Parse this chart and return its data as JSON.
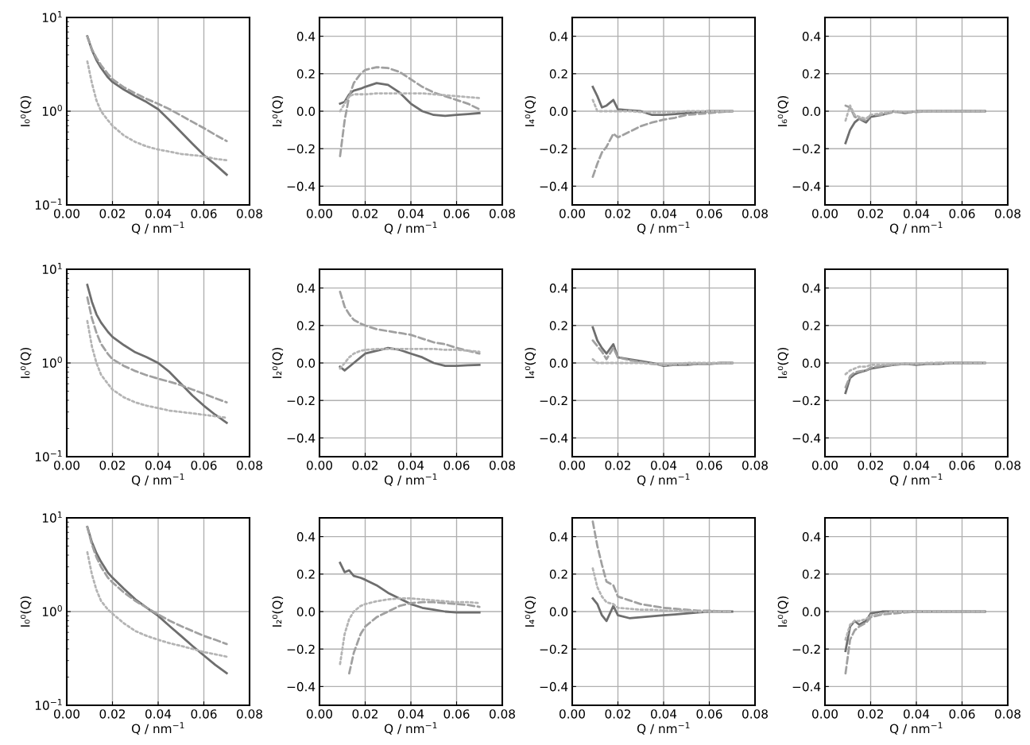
{
  "chart_data": [
    {
      "type": "line",
      "log": "y",
      "grid": true,
      "xlabel": "Q / nm$^{−1}$",
      "ylabel": "I₀⁰(Q)",
      "xlim": [
        0,
        0.08
      ],
      "xticks": [
        {
          "value": 0,
          "label": "0.00"
        },
        {
          "value": 0.02,
          "label": "0.02"
        },
        {
          "value": 0.04,
          "label": "0.04"
        },
        {
          "value": 0.06,
          "label": "0.06"
        },
        {
          "value": 0.08,
          "label": "0.08"
        }
      ],
      "ylim": [
        0.1,
        10
      ],
      "yticks": [
        {
          "value": 0.1,
          "label": "10$^{−1}$"
        },
        {
          "value": 1,
          "label": "10$^{0}$"
        },
        {
          "value": 10,
          "label": "10$^{1}$"
        }
      ],
      "x": [
        0.009,
        0.011,
        0.013,
        0.015,
        0.018,
        0.02,
        0.025,
        0.03,
        0.035,
        0.04,
        0.045,
        0.05,
        0.055,
        0.06,
        0.065,
        0.07
      ],
      "series": [
        {
          "color": "#6e6e6e",
          "line_style": "solid",
          "values": [
            6.3,
            4.5,
            3.5,
            2.9,
            2.3,
            2.05,
            1.7,
            1.45,
            1.25,
            1.05,
            0.8,
            0.6,
            0.45,
            0.34,
            0.27,
            0.21
          ]
        },
        {
          "color": "#a0a0a0",
          "line_style": "dashed",
          "values": [
            6.3,
            4.6,
            3.7,
            3.1,
            2.5,
            2.2,
            1.8,
            1.55,
            1.35,
            1.2,
            1.05,
            0.9,
            0.77,
            0.66,
            0.56,
            0.48
          ]
        },
        {
          "color": "#b4b4b4",
          "line_style": "dotted",
          "values": [
            3.4,
            2.0,
            1.3,
            1.0,
            0.8,
            0.7,
            0.55,
            0.47,
            0.42,
            0.39,
            0.37,
            0.35,
            0.34,
            0.33,
            0.31,
            0.3
          ]
        }
      ]
    },
    {
      "type": "line",
      "grid": true,
      "xlabel": "Q / nm$^{−1}$",
      "ylabel": "I₂⁰(Q)",
      "xlim": [
        0,
        0.08
      ],
      "xticks": [
        {
          "value": 0,
          "label": "0.00"
        },
        {
          "value": 0.02,
          "label": "0.02"
        },
        {
          "value": 0.04,
          "label": "0.04"
        },
        {
          "value": 0.06,
          "label": "0.06"
        },
        {
          "value": 0.08,
          "label": "0.08"
        }
      ],
      "ylim": [
        -0.5,
        0.5
      ],
      "yticks": [
        {
          "value": -0.4,
          "label": "−0.4"
        },
        {
          "value": -0.2,
          "label": "−0.2"
        },
        {
          "value": 0,
          "label": "0.0"
        },
        {
          "value": 0.2,
          "label": "0.2"
        },
        {
          "value": 0.4,
          "label": "0.4"
        }
      ],
      "x": [
        0.009,
        0.011,
        0.013,
        0.015,
        0.018,
        0.02,
        0.025,
        0.03,
        0.035,
        0.04,
        0.045,
        0.05,
        0.055,
        0.06,
        0.065,
        0.07
      ],
      "series": [
        {
          "color": "#6e6e6e",
          "line_style": "solid",
          "values": [
            0.04,
            0.05,
            0.09,
            0.11,
            0.12,
            0.13,
            0.15,
            0.14,
            0.1,
            0.04,
            0.0,
            -0.02,
            -0.025,
            -0.02,
            -0.015,
            -0.01
          ]
        },
        {
          "color": "#a0a0a0",
          "line_style": "dashed",
          "values": [
            -0.24,
            -0.05,
            0.08,
            0.15,
            0.2,
            0.22,
            0.235,
            0.23,
            0.21,
            0.17,
            0.13,
            0.1,
            0.08,
            0.06,
            0.04,
            0.01
          ]
        },
        {
          "color": "#b4b4b4",
          "line_style": "dotted",
          "values": [
            0.0,
            0.04,
            0.08,
            0.09,
            0.09,
            0.09,
            0.095,
            0.095,
            0.095,
            0.095,
            0.095,
            0.09,
            0.085,
            0.08,
            0.075,
            0.07
          ]
        }
      ]
    },
    {
      "type": "line",
      "grid": true,
      "xlabel": "Q / nm$^{−1}$",
      "ylabel": "I₄⁰(Q)",
      "xlim": [
        0,
        0.08
      ],
      "xticks": [
        {
          "value": 0,
          "label": "0.00"
        },
        {
          "value": 0.02,
          "label": "0.02"
        },
        {
          "value": 0.04,
          "label": "0.04"
        },
        {
          "value": 0.06,
          "label": "0.06"
        },
        {
          "value": 0.08,
          "label": "0.08"
        }
      ],
      "ylim": [
        -0.5,
        0.5
      ],
      "yticks": [
        {
          "value": -0.4,
          "label": "−0.4"
        },
        {
          "value": -0.2,
          "label": "−0.2"
        },
        {
          "value": 0,
          "label": "0.0"
        },
        {
          "value": 0.2,
          "label": "0.2"
        },
        {
          "value": 0.4,
          "label": "0.4"
        }
      ],
      "x": [
        0.009,
        0.011,
        0.013,
        0.015,
        0.018,
        0.02,
        0.025,
        0.03,
        0.035,
        0.04,
        0.045,
        0.05,
        0.055,
        0.06,
        0.065,
        0.07
      ],
      "series": [
        {
          "color": "#6e6e6e",
          "line_style": "solid",
          "values": [
            0.13,
            0.08,
            0.02,
            0.03,
            0.06,
            0.01,
            0.005,
            0.0,
            -0.02,
            -0.02,
            -0.015,
            -0.01,
            -0.005,
            0.0,
            0.0,
            0.0
          ]
        },
        {
          "color": "#a0a0a0",
          "line_style": "dashed",
          "values": [
            -0.35,
            -0.28,
            -0.22,
            -0.19,
            -0.12,
            -0.14,
            -0.11,
            -0.08,
            -0.06,
            -0.045,
            -0.035,
            -0.02,
            -0.015,
            -0.01,
            -0.005,
            0.0
          ]
        },
        {
          "color": "#b4b4b4",
          "line_style": "dotted",
          "values": [
            0.06,
            0.0,
            0.0,
            0.0,
            0.0,
            0.0,
            0.0,
            -0.005,
            -0.005,
            -0.005,
            -0.005,
            0.0,
            0.0,
            0.0,
            0.0,
            0.0
          ]
        }
      ]
    },
    {
      "type": "line",
      "grid": true,
      "xlabel": "Q / nm$^{−1}$",
      "ylabel": "I₆⁰(Q)",
      "xlim": [
        0,
        0.08
      ],
      "xticks": [
        {
          "value": 0,
          "label": "0.00"
        },
        {
          "value": 0.02,
          "label": "0.02"
        },
        {
          "value": 0.04,
          "label": "0.04"
        },
        {
          "value": 0.06,
          "label": "0.06"
        },
        {
          "value": 0.08,
          "label": "0.08"
        }
      ],
      "ylim": [
        -0.5,
        0.5
      ],
      "yticks": [
        {
          "value": -0.4,
          "label": "−0.4"
        },
        {
          "value": -0.2,
          "label": "−0.2"
        },
        {
          "value": 0,
          "label": "0.0"
        },
        {
          "value": 0.2,
          "label": "0.2"
        },
        {
          "value": 0.4,
          "label": "0.4"
        }
      ],
      "x": [
        0.009,
        0.011,
        0.013,
        0.015,
        0.018,
        0.02,
        0.025,
        0.03,
        0.035,
        0.04,
        0.045,
        0.05,
        0.055,
        0.06,
        0.065,
        0.07
      ],
      "series": [
        {
          "color": "#6e6e6e",
          "line_style": "solid",
          "values": [
            -0.17,
            -0.1,
            -0.06,
            -0.04,
            -0.06,
            -0.03,
            -0.02,
            0.0,
            -0.01,
            0.0,
            0.0,
            0.0,
            0.0,
            0.0,
            0.0,
            0.0
          ]
        },
        {
          "color": "#a0a0a0",
          "line_style": "dashed",
          "values": [
            0.03,
            0.02,
            -0.03,
            -0.04,
            -0.05,
            -0.02,
            -0.02,
            -0.005,
            -0.005,
            -0.005,
            0.0,
            0.0,
            0.0,
            0.0,
            0.0,
            0.0
          ]
        },
        {
          "color": "#b4b4b4",
          "line_style": "dotted",
          "values": [
            -0.05,
            0.03,
            -0.02,
            -0.03,
            -0.04,
            -0.02,
            -0.01,
            0.0,
            -0.005,
            0.0,
            0.0,
            0.0,
            0.0,
            0.0,
            0.0,
            0.0
          ]
        }
      ]
    },
    {
      "type": "line",
      "log": "y",
      "grid": true,
      "xlabel": "Q / nm$^{−1}$",
      "ylabel": "I₀⁰(Q)",
      "xlim": [
        0,
        0.08
      ],
      "xticks": [
        {
          "value": 0,
          "label": "0.00"
        },
        {
          "value": 0.02,
          "label": "0.02"
        },
        {
          "value": 0.04,
          "label": "0.04"
        },
        {
          "value": 0.06,
          "label": "0.06"
        },
        {
          "value": 0.08,
          "label": "0.08"
        }
      ],
      "ylim": [
        0.1,
        10
      ],
      "yticks": [
        {
          "value": 0.1,
          "label": "10$^{−1}$"
        },
        {
          "value": 1,
          "label": "10$^{0}$"
        },
        {
          "value": 10,
          "label": "10$^{1}$"
        }
      ],
      "x": [
        0.009,
        0.011,
        0.013,
        0.015,
        0.018,
        0.02,
        0.025,
        0.03,
        0.035,
        0.04,
        0.045,
        0.05,
        0.055,
        0.06,
        0.065,
        0.07
      ],
      "series": [
        {
          "color": "#6e6e6e",
          "line_style": "solid",
          "values": [
            6.8,
            4.5,
            3.3,
            2.7,
            2.15,
            1.9,
            1.55,
            1.3,
            1.15,
            1.0,
            0.8,
            0.6,
            0.45,
            0.35,
            0.28,
            0.23
          ]
        },
        {
          "color": "#a0a0a0",
          "line_style": "dashed",
          "values": [
            5.0,
            3.0,
            2.1,
            1.6,
            1.25,
            1.1,
            0.93,
            0.82,
            0.74,
            0.68,
            0.63,
            0.58,
            0.52,
            0.47,
            0.42,
            0.38
          ]
        },
        {
          "color": "#b4b4b4",
          "line_style": "dotted",
          "values": [
            2.8,
            1.5,
            1.0,
            0.75,
            0.6,
            0.52,
            0.43,
            0.38,
            0.35,
            0.33,
            0.31,
            0.3,
            0.29,
            0.28,
            0.27,
            0.26
          ]
        }
      ]
    },
    {
      "type": "line",
      "grid": true,
      "xlabel": "Q / nm$^{−1}$",
      "ylabel": "I₂⁰(Q)",
      "xlim": [
        0,
        0.08
      ],
      "xticks": [
        {
          "value": 0,
          "label": "0.00"
        },
        {
          "value": 0.02,
          "label": "0.02"
        },
        {
          "value": 0.04,
          "label": "0.04"
        },
        {
          "value": 0.06,
          "label": "0.06"
        },
        {
          "value": 0.08,
          "label": "0.08"
        }
      ],
      "ylim": [
        -0.5,
        0.5
      ],
      "yticks": [
        {
          "value": -0.4,
          "label": "−0.4"
        },
        {
          "value": -0.2,
          "label": "−0.2"
        },
        {
          "value": 0,
          "label": "0.0"
        },
        {
          "value": 0.2,
          "label": "0.2"
        },
        {
          "value": 0.4,
          "label": "0.4"
        }
      ],
      "x": [
        0.009,
        0.011,
        0.013,
        0.015,
        0.018,
        0.02,
        0.025,
        0.03,
        0.035,
        0.04,
        0.045,
        0.05,
        0.055,
        0.06,
        0.065,
        0.07
      ],
      "series": [
        {
          "color": "#6e6e6e",
          "line_style": "solid",
          "values": [
            -0.02,
            -0.04,
            -0.02,
            0.0,
            0.03,
            0.05,
            0.065,
            0.08,
            0.07,
            0.05,
            0.03,
            0.0,
            -0.015,
            -0.015,
            -0.012,
            -0.01
          ]
        },
        {
          "color": "#a0a0a0",
          "line_style": "dashed",
          "values": [
            0.38,
            0.3,
            0.26,
            0.23,
            0.21,
            0.2,
            0.18,
            0.17,
            0.16,
            0.15,
            0.13,
            0.11,
            0.1,
            0.08,
            0.065,
            0.05
          ]
        },
        {
          "color": "#b4b4b4",
          "line_style": "dotted",
          "values": [
            -0.03,
            0.0,
            0.03,
            0.05,
            0.065,
            0.07,
            0.075,
            0.075,
            0.075,
            0.075,
            0.075,
            0.075,
            0.07,
            0.07,
            0.065,
            0.06
          ]
        }
      ]
    },
    {
      "type": "line",
      "grid": true,
      "xlabel": "Q / nm$^{−1}$",
      "ylabel": "I₄⁰(Q)",
      "xlim": [
        0,
        0.08
      ],
      "xticks": [
        {
          "value": 0,
          "label": "0.00"
        },
        {
          "value": 0.02,
          "label": "0.02"
        },
        {
          "value": 0.04,
          "label": "0.04"
        },
        {
          "value": 0.06,
          "label": "0.06"
        },
        {
          "value": 0.08,
          "label": "0.08"
        }
      ],
      "ylim": [
        -0.5,
        0.5
      ],
      "yticks": [
        {
          "value": -0.4,
          "label": "−0.4"
        },
        {
          "value": -0.2,
          "label": "−0.2"
        },
        {
          "value": 0,
          "label": "0.0"
        },
        {
          "value": 0.2,
          "label": "0.2"
        },
        {
          "value": 0.4,
          "label": "0.4"
        }
      ],
      "x": [
        0.009,
        0.011,
        0.013,
        0.015,
        0.018,
        0.02,
        0.025,
        0.03,
        0.035,
        0.04,
        0.045,
        0.05,
        0.055,
        0.06,
        0.065,
        0.07
      ],
      "series": [
        {
          "color": "#6e6e6e",
          "line_style": "solid",
          "values": [
            0.19,
            0.12,
            0.08,
            0.05,
            0.1,
            0.03,
            0.02,
            0.01,
            0.0,
            -0.015,
            -0.01,
            -0.01,
            -0.005,
            -0.005,
            0.0,
            0.0
          ]
        },
        {
          "color": "#a0a0a0",
          "line_style": "dashed",
          "values": [
            0.12,
            0.09,
            0.06,
            0.02,
            0.08,
            0.03,
            0.015,
            0.005,
            -0.005,
            -0.01,
            -0.01,
            -0.01,
            -0.005,
            -0.005,
            0.0,
            0.0
          ]
        },
        {
          "color": "#b4b4b4",
          "line_style": "dotted",
          "values": [
            0.02,
            0.0,
            0.0,
            0.0,
            0.0,
            0.0,
            0.0,
            0.0,
            -0.005,
            -0.01,
            -0.005,
            0.0,
            0.0,
            0.0,
            0.0,
            0.0
          ]
        }
      ]
    },
    {
      "type": "line",
      "grid": true,
      "xlabel": "Q / nm$^{−1}$",
      "ylabel": "I₆⁰(Q)",
      "xlim": [
        0,
        0.08
      ],
      "xticks": [
        {
          "value": 0,
          "label": "0.00"
        },
        {
          "value": 0.02,
          "label": "0.02"
        },
        {
          "value": 0.04,
          "label": "0.04"
        },
        {
          "value": 0.06,
          "label": "0.06"
        },
        {
          "value": 0.08,
          "label": "0.08"
        }
      ],
      "ylim": [
        -0.5,
        0.5
      ],
      "yticks": [
        {
          "value": -0.4,
          "label": "−0.4"
        },
        {
          "value": -0.2,
          "label": "−0.2"
        },
        {
          "value": 0,
          "label": "0.0"
        },
        {
          "value": 0.2,
          "label": "0.2"
        },
        {
          "value": 0.4,
          "label": "0.4"
        }
      ],
      "x": [
        0.009,
        0.011,
        0.013,
        0.015,
        0.018,
        0.02,
        0.025,
        0.03,
        0.035,
        0.04,
        0.045,
        0.05,
        0.055,
        0.06,
        0.065,
        0.07
      ],
      "series": [
        {
          "color": "#6e6e6e",
          "line_style": "solid",
          "values": [
            -0.16,
            -0.08,
            -0.06,
            -0.05,
            -0.04,
            -0.03,
            -0.02,
            -0.01,
            -0.005,
            -0.01,
            -0.005,
            -0.005,
            0.0,
            0.0,
            0.0,
            0.0
          ]
        },
        {
          "color": "#a0a0a0",
          "line_style": "dashed",
          "values": [
            -0.13,
            -0.07,
            -0.05,
            -0.045,
            -0.04,
            -0.025,
            -0.015,
            -0.01,
            -0.005,
            -0.005,
            -0.005,
            0.0,
            0.0,
            0.0,
            0.0,
            0.0
          ]
        },
        {
          "color": "#b4b4b4",
          "line_style": "dotted",
          "values": [
            -0.06,
            -0.04,
            -0.03,
            -0.02,
            -0.02,
            -0.01,
            -0.01,
            -0.005,
            -0.005,
            -0.005,
            0.0,
            0.0,
            0.0,
            0.0,
            0.0,
            0.0
          ]
        }
      ]
    },
    {
      "type": "line",
      "log": "y",
      "grid": true,
      "xlabel": "Q / nm$^{−1}$",
      "ylabel": "I₀⁰(Q)",
      "xlim": [
        0,
        0.08
      ],
      "xticks": [
        {
          "value": 0,
          "label": "0.00"
        },
        {
          "value": 0.02,
          "label": "0.02"
        },
        {
          "value": 0.04,
          "label": "0.04"
        },
        {
          "value": 0.06,
          "label": "0.06"
        },
        {
          "value": 0.08,
          "label": "0.08"
        }
      ],
      "ylim": [
        0.1,
        10
      ],
      "yticks": [
        {
          "value": 0.1,
          "label": "10$^{−1}$"
        },
        {
          "value": 1,
          "label": "10$^{0}$"
        },
        {
          "value": 10,
          "label": "10$^{1}$"
        }
      ],
      "x": [
        0.009,
        0.011,
        0.013,
        0.015,
        0.018,
        0.02,
        0.025,
        0.03,
        0.035,
        0.04,
        0.045,
        0.05,
        0.055,
        0.06,
        0.065,
        0.07
      ],
      "series": [
        {
          "color": "#6e6e6e",
          "line_style": "solid",
          "values": [
            8.0,
            5.5,
            4.2,
            3.4,
            2.6,
            2.3,
            1.75,
            1.35,
            1.1,
            0.9,
            0.7,
            0.55,
            0.43,
            0.34,
            0.27,
            0.22
          ]
        },
        {
          "color": "#a0a0a0",
          "line_style": "dashed",
          "values": [
            8.0,
            5.2,
            3.8,
            3.0,
            2.3,
            2.05,
            1.6,
            1.3,
            1.1,
            0.93,
            0.8,
            0.7,
            0.62,
            0.55,
            0.5,
            0.45
          ]
        },
        {
          "color": "#b4b4b4",
          "line_style": "dotted",
          "values": [
            4.3,
            2.5,
            1.7,
            1.3,
            1.05,
            0.95,
            0.75,
            0.62,
            0.55,
            0.5,
            0.46,
            0.43,
            0.4,
            0.37,
            0.35,
            0.33
          ]
        }
      ]
    },
    {
      "type": "line",
      "grid": true,
      "xlabel": "Q / nm$^{−1}$",
      "ylabel": "I₂⁰(Q)",
      "xlim": [
        0,
        0.08
      ],
      "xticks": [
        {
          "value": 0,
          "label": "0.00"
        },
        {
          "value": 0.02,
          "label": "0.02"
        },
        {
          "value": 0.04,
          "label": "0.04"
        },
        {
          "value": 0.06,
          "label": "0.06"
        },
        {
          "value": 0.08,
          "label": "0.08"
        }
      ],
      "ylim": [
        -0.5,
        0.5
      ],
      "yticks": [
        {
          "value": -0.4,
          "label": "−0.4"
        },
        {
          "value": -0.2,
          "label": "−0.2"
        },
        {
          "value": 0,
          "label": "0.0"
        },
        {
          "value": 0.2,
          "label": "0.2"
        },
        {
          "value": 0.4,
          "label": "0.4"
        }
      ],
      "x": [
        0.009,
        0.011,
        0.013,
        0.015,
        0.018,
        0.02,
        0.025,
        0.03,
        0.035,
        0.04,
        0.045,
        0.05,
        0.055,
        0.06,
        0.065,
        0.07
      ],
      "series": [
        {
          "color": "#6e6e6e",
          "line_style": "solid",
          "values": [
            0.26,
            0.21,
            0.22,
            0.19,
            0.18,
            0.17,
            0.14,
            0.1,
            0.07,
            0.04,
            0.02,
            0.01,
            0.0,
            -0.005,
            -0.005,
            -0.005
          ]
        },
        {
          "color": "#a0a0a0",
          "line_style": "dashed",
          "values": [
            null,
            null,
            -0.33,
            -0.22,
            -0.12,
            -0.08,
            -0.03,
            0.0,
            0.03,
            0.045,
            0.05,
            0.05,
            0.045,
            0.04,
            0.035,
            0.025
          ]
        },
        {
          "color": "#b4b4b4",
          "line_style": "dotted",
          "values": [
            -0.28,
            -0.12,
            -0.04,
            0.0,
            0.03,
            0.04,
            0.055,
            0.065,
            0.07,
            0.07,
            0.065,
            0.06,
            0.055,
            0.05,
            0.05,
            0.045
          ]
        }
      ]
    },
    {
      "type": "line",
      "grid": true,
      "xlabel": "Q / nm$^{−1}$",
      "ylabel": "I₄⁰(Q)",
      "xlim": [
        0,
        0.08
      ],
      "xticks": [
        {
          "value": 0,
          "label": "0.00"
        },
        {
          "value": 0.02,
          "label": "0.02"
        },
        {
          "value": 0.04,
          "label": "0.04"
        },
        {
          "value": 0.06,
          "label": "0.06"
        },
        {
          "value": 0.08,
          "label": "0.08"
        }
      ],
      "ylim": [
        -0.5,
        0.5
      ],
      "yticks": [
        {
          "value": -0.4,
          "label": "−0.4"
        },
        {
          "value": -0.2,
          "label": "−0.2"
        },
        {
          "value": 0,
          "label": "0.0"
        },
        {
          "value": 0.2,
          "label": "0.2"
        },
        {
          "value": 0.4,
          "label": "0.4"
        }
      ],
      "x": [
        0.009,
        0.011,
        0.013,
        0.015,
        0.018,
        0.02,
        0.025,
        0.03,
        0.035,
        0.04,
        0.045,
        0.05,
        0.055,
        0.06,
        0.065,
        0.07
      ],
      "series": [
        {
          "color": "#6e6e6e",
          "line_style": "solid",
          "values": [
            0.07,
            0.04,
            -0.02,
            -0.05,
            0.03,
            -0.02,
            -0.035,
            -0.03,
            -0.025,
            -0.02,
            -0.015,
            -0.01,
            -0.005,
            0.0,
            0.0,
            0.0
          ]
        },
        {
          "color": "#a0a0a0",
          "line_style": "dashed",
          "values": [
            0.48,
            0.35,
            0.25,
            0.16,
            0.14,
            0.08,
            0.06,
            0.04,
            0.03,
            0.02,
            0.015,
            0.01,
            0.005,
            0.005,
            0.0,
            0.0
          ]
        },
        {
          "color": "#b4b4b4",
          "line_style": "dotted",
          "values": [
            0.23,
            0.13,
            0.08,
            0.05,
            0.04,
            0.02,
            0.015,
            0.01,
            0.01,
            0.005,
            0.005,
            0.005,
            0.0,
            0.0,
            0.0,
            0.0
          ]
        }
      ]
    },
    {
      "type": "line",
      "grid": true,
      "xlabel": "Q / nm$^{−1}$",
      "ylabel": "I₆⁰(Q)",
      "xlim": [
        0,
        0.08
      ],
      "xticks": [
        {
          "value": 0,
          "label": "0.00"
        },
        {
          "value": 0.02,
          "label": "0.02"
        },
        {
          "value": 0.04,
          "label": "0.04"
        },
        {
          "value": 0.06,
          "label": "0.06"
        },
        {
          "value": 0.08,
          "label": "0.08"
        }
      ],
      "ylim": [
        -0.5,
        0.5
      ],
      "yticks": [
        {
          "value": -0.4,
          "label": "−0.4"
        },
        {
          "value": -0.2,
          "label": "−0.2"
        },
        {
          "value": 0,
          "label": "0.0"
        },
        {
          "value": 0.2,
          "label": "0.2"
        },
        {
          "value": 0.4,
          "label": "0.4"
        }
      ],
      "x": [
        0.009,
        0.011,
        0.013,
        0.015,
        0.018,
        0.02,
        0.025,
        0.03,
        0.035,
        0.04,
        0.045,
        0.05,
        0.055,
        0.06,
        0.065,
        0.07
      ],
      "series": [
        {
          "color": "#6e6e6e",
          "line_style": "solid",
          "values": [
            -0.21,
            -0.08,
            -0.05,
            -0.07,
            -0.05,
            -0.01,
            0.0,
            0.0,
            0.0,
            0.0,
            0.0,
            0.0,
            0.0,
            0.0,
            0.0,
            0.0
          ]
        },
        {
          "color": "#a0a0a0",
          "line_style": "dashed",
          "values": [
            -0.33,
            -0.15,
            -0.1,
            -0.08,
            -0.06,
            -0.03,
            -0.015,
            -0.01,
            -0.005,
            0.0,
            0.0,
            0.0,
            0.0,
            0.0,
            0.0,
            0.0
          ]
        },
        {
          "color": "#b4b4b4",
          "line_style": "dotted",
          "values": [
            -0.15,
            -0.07,
            -0.05,
            -0.05,
            -0.04,
            -0.02,
            -0.01,
            0.0,
            0.0,
            0.0,
            0.0,
            0.0,
            0.0,
            0.0,
            0.0,
            0.0
          ]
        }
      ]
    }
  ]
}
